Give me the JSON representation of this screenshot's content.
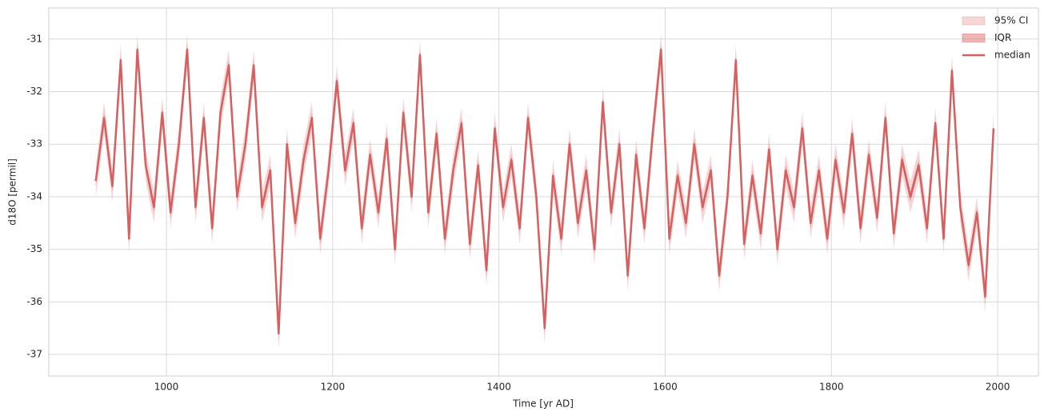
{
  "chart_data": {
    "type": "band-line",
    "xlabel": "Time [yr AD]",
    "ylabel": "d18O [permil]",
    "xlim": [
      858.5,
      2049
    ],
    "ylim": [
      -37.41,
      -30.41
    ],
    "xticks": [
      1000,
      1200,
      1400,
      1600,
      1800,
      2000
    ],
    "yticks": [
      -37,
      -36,
      -35,
      -34,
      -33,
      -32,
      -31
    ],
    "grid": true,
    "legend": "upper right",
    "x": [
      915,
      925,
      935,
      945,
      955,
      965,
      975,
      985,
      995,
      1005,
      1015,
      1025,
      1035,
      1045,
      1055,
      1065,
      1075,
      1085,
      1095,
      1105,
      1115,
      1125,
      1135,
      1145,
      1155,
      1165,
      1175,
      1185,
      1195,
      1205,
      1215,
      1225,
      1235,
      1245,
      1255,
      1265,
      1275,
      1285,
      1295,
      1305,
      1315,
      1325,
      1335,
      1345,
      1355,
      1365,
      1375,
      1385,
      1395,
      1405,
      1415,
      1425,
      1435,
      1445,
      1455,
      1465,
      1475,
      1485,
      1495,
      1505,
      1515,
      1525,
      1535,
      1545,
      1555,
      1565,
      1575,
      1585,
      1595,
      1605,
      1615,
      1625,
      1635,
      1645,
      1655,
      1665,
      1675,
      1685,
      1695,
      1705,
      1715,
      1725,
      1735,
      1745,
      1755,
      1765,
      1775,
      1785,
      1795,
      1805,
      1815,
      1825,
      1835,
      1845,
      1855,
      1865,
      1875,
      1885,
      1895,
      1905,
      1915,
      1925,
      1935,
      1945,
      1955,
      1965,
      1975,
      1985,
      1995
    ],
    "series": [
      {
        "name": "95% CI",
        "color": "#d65f5f",
        "opacity": 0.25,
        "upper": [
          -33.4,
          -32.2,
          -33.5,
          -31.1,
          -34.5,
          -30.9,
          -33.1,
          -33.9,
          -32.1,
          -34.0,
          -32.7,
          -30.9,
          -33.9,
          -32.2,
          -34.3,
          -32.1,
          -31.2,
          -33.7,
          -32.7,
          -31.2,
          -33.9,
          -33.2,
          -36.3,
          -32.7,
          -34.2,
          -33.0,
          -32.2,
          -34.5,
          -33.2,
          -31.5,
          -33.2,
          -32.3,
          -34.3,
          -32.9,
          -34.0,
          -32.6,
          -34.7,
          -32.1,
          -33.7,
          -31.0,
          -34.0,
          -32.5,
          -34.5,
          -33.2,
          -32.3,
          -34.6,
          -33.1,
          -35.1,
          -32.4,
          -33.9,
          -33.0,
          -34.3,
          -32.2,
          -33.7,
          -36.2,
          -33.3,
          -34.5,
          -32.7,
          -34.2,
          -33.2,
          -34.7,
          -31.9,
          -34.0,
          -32.7,
          -35.2,
          -32.9,
          -34.3,
          -32.5,
          -30.9,
          -34.5,
          -33.3,
          -34.2,
          -32.7,
          -33.9,
          -33.2,
          -35.2,
          -33.7,
          -31.1,
          -34.6,
          -33.3,
          -34.4,
          -32.8,
          -34.7,
          -33.2,
          -33.9,
          -32.4,
          -34.2,
          -33.2,
          -34.5,
          -33.0,
          -34.0,
          -32.5,
          -34.3,
          -32.9,
          -34.1,
          -32.2,
          -34.4,
          -33.0,
          -33.7,
          -33.1,
          -34.3,
          -32.3,
          -34.5,
          -31.3,
          -33.9,
          -35.0,
          -34.0,
          -35.6,
          -32.4
        ],
        "lower": [
          -34.0,
          -32.8,
          -34.1,
          -31.7,
          -35.1,
          -31.5,
          -33.7,
          -34.5,
          -32.7,
          -34.6,
          -33.3,
          -31.5,
          -34.5,
          -32.8,
          -34.9,
          -32.7,
          -31.8,
          -34.3,
          -33.3,
          -31.8,
          -34.5,
          -33.8,
          -36.9,
          -33.3,
          -34.8,
          -33.6,
          -32.8,
          -35.1,
          -33.8,
          -32.1,
          -33.8,
          -32.9,
          -34.9,
          -33.5,
          -34.6,
          -33.2,
          -35.3,
          -32.7,
          -34.3,
          -31.6,
          -34.6,
          -33.1,
          -35.1,
          -33.8,
          -32.9,
          -35.2,
          -33.7,
          -35.7,
          -33.0,
          -34.5,
          -33.6,
          -34.9,
          -32.8,
          -34.3,
          -36.8,
          -33.9,
          -35.1,
          -33.3,
          -34.8,
          -33.8,
          -35.3,
          -32.5,
          -34.6,
          -33.3,
          -35.8,
          -33.5,
          -34.9,
          -33.1,
          -31.5,
          -35.1,
          -33.9,
          -34.8,
          -33.3,
          -34.5,
          -33.8,
          -35.8,
          -34.3,
          -31.7,
          -35.2,
          -33.9,
          -35.0,
          -33.4,
          -35.3,
          -33.8,
          -34.5,
          -33.0,
          -34.8,
          -33.8,
          -35.1,
          -33.6,
          -34.6,
          -33.1,
          -34.9,
          -33.5,
          -34.7,
          -32.8,
          -35.0,
          -33.6,
          -34.3,
          -33.7,
          -34.9,
          -32.9,
          -35.1,
          -31.9,
          -34.5,
          -35.6,
          -34.6,
          -36.2,
          -33.0
        ]
      },
      {
        "name": "IQR",
        "color": "#d65f5f",
        "opacity": 0.45,
        "upper": [
          -33.6,
          -32.4,
          -33.7,
          -31.3,
          -34.7,
          -31.1,
          -33.3,
          -34.1,
          -32.3,
          -34.2,
          -32.9,
          -31.1,
          -34.1,
          -32.4,
          -34.5,
          -32.3,
          -31.4,
          -33.9,
          -32.9,
          -31.4,
          -34.1,
          -33.4,
          -36.5,
          -32.9,
          -34.4,
          -33.2,
          -32.4,
          -34.7,
          -33.4,
          -31.7,
          -33.4,
          -32.5,
          -34.5,
          -33.1,
          -34.2,
          -32.8,
          -34.9,
          -32.3,
          -33.9,
          -31.2,
          -34.2,
          -32.7,
          -34.7,
          -33.4,
          -32.5,
          -34.8,
          -33.3,
          -35.3,
          -32.6,
          -34.1,
          -33.2,
          -34.5,
          -32.4,
          -33.9,
          -36.4,
          -33.5,
          -34.7,
          -32.9,
          -34.4,
          -33.4,
          -34.9,
          -32.1,
          -34.2,
          -32.9,
          -35.4,
          -33.1,
          -34.5,
          -32.7,
          -31.1,
          -34.7,
          -33.5,
          -34.4,
          -32.9,
          -34.1,
          -33.4,
          -35.4,
          -33.9,
          -31.3,
          -34.8,
          -33.5,
          -34.6,
          -33.0,
          -34.9,
          -33.4,
          -34.1,
          -32.6,
          -34.4,
          -33.4,
          -34.7,
          -33.2,
          -34.2,
          -32.7,
          -34.5,
          -33.1,
          -34.3,
          -32.4,
          -34.6,
          -33.2,
          -33.9,
          -33.3,
          -34.5,
          -32.5,
          -34.7,
          -31.5,
          -34.1,
          -35.2,
          -34.2,
          -35.8,
          -32.6
        ],
        "lower": [
          -33.8,
          -32.6,
          -33.9,
          -31.5,
          -34.9,
          -31.3,
          -33.5,
          -34.3,
          -32.5,
          -34.4,
          -33.1,
          -31.3,
          -34.3,
          -32.6,
          -34.7,
          -32.5,
          -31.6,
          -34.1,
          -33.1,
          -31.6,
          -34.3,
          -33.6,
          -36.7,
          -33.1,
          -34.6,
          -33.4,
          -32.6,
          -34.9,
          -33.6,
          -31.9,
          -33.6,
          -32.7,
          -34.7,
          -33.3,
          -34.4,
          -33.0,
          -35.1,
          -32.5,
          -34.1,
          -31.4,
          -34.4,
          -32.9,
          -34.9,
          -33.6,
          -32.7,
          -35.0,
          -33.5,
          -35.5,
          -32.8,
          -34.3,
          -33.4,
          -34.7,
          -32.6,
          -34.1,
          -36.6,
          -33.7,
          -34.9,
          -33.1,
          -34.6,
          -33.6,
          -35.1,
          -32.3,
          -34.4,
          -33.1,
          -35.6,
          -33.3,
          -34.7,
          -32.9,
          -31.3,
          -34.9,
          -33.7,
          -34.6,
          -33.1,
          -34.3,
          -33.6,
          -35.6,
          -34.1,
          -31.5,
          -35.0,
          -33.7,
          -34.8,
          -33.2,
          -35.1,
          -33.6,
          -34.3,
          -32.8,
          -34.6,
          -33.6,
          -34.9,
          -33.4,
          -34.4,
          -32.9,
          -34.7,
          -33.3,
          -34.5,
          -32.6,
          -34.8,
          -33.4,
          -34.1,
          -33.5,
          -34.7,
          -32.7,
          -34.9,
          -31.7,
          -34.3,
          -35.4,
          -34.4,
          -36.0,
          -32.8
        ]
      },
      {
        "name": "median",
        "color": "#d65f5f",
        "values": [
          -33.7,
          -32.5,
          -33.8,
          -31.4,
          -34.8,
          -31.2,
          -33.4,
          -34.2,
          -32.4,
          -34.3,
          -33.0,
          -31.2,
          -34.2,
          -32.5,
          -34.6,
          -32.4,
          -31.5,
          -34.0,
          -33.0,
          -31.5,
          -34.2,
          -33.5,
          -36.6,
          -33.0,
          -34.5,
          -33.3,
          -32.5,
          -34.8,
          -33.5,
          -31.8,
          -33.5,
          -32.6,
          -34.6,
          -33.2,
          -34.3,
          -32.9,
          -35.0,
          -32.4,
          -34.0,
          -31.3,
          -34.3,
          -32.8,
          -34.8,
          -33.5,
          -32.6,
          -34.9,
          -33.4,
          -35.4,
          -32.7,
          -34.2,
          -33.3,
          -34.6,
          -32.5,
          -34.0,
          -36.5,
          -33.6,
          -34.8,
          -33.0,
          -34.5,
          -33.5,
          -35.0,
          -32.2,
          -34.3,
          -33.0,
          -35.5,
          -33.2,
          -34.6,
          -32.8,
          -31.2,
          -34.8,
          -33.6,
          -34.5,
          -33.0,
          -34.2,
          -33.5,
          -35.5,
          -34.0,
          -31.4,
          -34.9,
          -33.6,
          -34.7,
          -33.1,
          -35.0,
          -33.5,
          -34.2,
          -32.7,
          -34.5,
          -33.5,
          -34.8,
          -33.3,
          -34.3,
          -32.8,
          -34.6,
          -33.2,
          -34.4,
          -32.5,
          -34.7,
          -33.3,
          -34.0,
          -33.4,
          -34.6,
          -32.6,
          -34.8,
          -31.6,
          -34.2,
          -35.3,
          -34.3,
          -35.9,
          -32.7
        ]
      }
    ]
  }
}
